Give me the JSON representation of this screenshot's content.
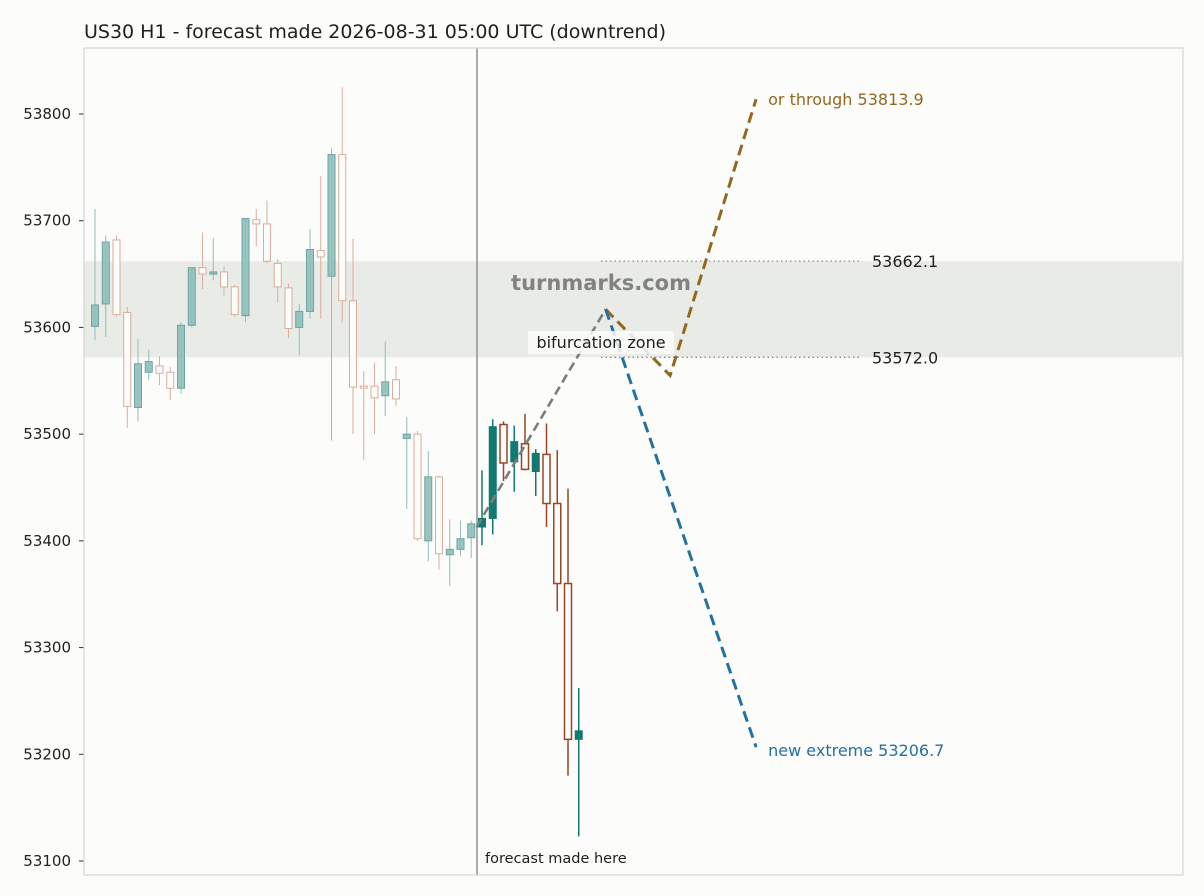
{
  "chart_data": {
    "type": "candlestick",
    "title": "US30 H1 - forecast made 2026-08-31 05:00 UTC (downtrend)",
    "watermark": "turnmarks.com",
    "y_ticks": [
      53100,
      53200,
      53300,
      53400,
      53500,
      53600,
      53700,
      53800
    ],
    "ylim": [
      53085,
      53860
    ],
    "forecast_label": "forecast made here",
    "zone": {
      "low": 53572.0,
      "high": 53662.1,
      "label": "bifurcation zone",
      "low_label": "53572.0",
      "high_label": "53662.1"
    },
    "history_candles": [
      {
        "o": 53601,
        "h": 53711,
        "l": 53588,
        "c": 53621
      },
      {
        "o": 53622,
        "h": 53686,
        "l": 53591,
        "c": 53680
      },
      {
        "o": 53682,
        "h": 53686,
        "l": 53610,
        "c": 53612
      },
      {
        "o": 53614,
        "h": 53619,
        "l": 53506,
        "c": 53526
      },
      {
        "o": 53525,
        "h": 53589,
        "l": 53512,
        "c": 53566
      },
      {
        "o": 53558,
        "h": 53579,
        "l": 53551,
        "c": 53568
      },
      {
        "o": 53564,
        "h": 53573,
        "l": 53546,
        "c": 53557
      },
      {
        "o": 53558,
        "h": 53563,
        "l": 53532,
        "c": 53543
      },
      {
        "o": 53543,
        "h": 53605,
        "l": 53538,
        "c": 53602
      },
      {
        "o": 53602,
        "h": 53656,
        "l": 53600,
        "c": 53656
      },
      {
        "o": 53656,
        "h": 53689,
        "l": 53636,
        "c": 53650
      },
      {
        "o": 53650,
        "h": 53684,
        "l": 53644,
        "c": 53652
      },
      {
        "o": 53652,
        "h": 53657,
        "l": 53630,
        "c": 53638
      },
      {
        "o": 53638,
        "h": 53640,
        "l": 53610,
        "c": 53612
      },
      {
        "o": 53611,
        "h": 53702,
        "l": 53605,
        "c": 53702
      },
      {
        "o": 53701,
        "h": 53711,
        "l": 53676,
        "c": 53697
      },
      {
        "o": 53697,
        "h": 53719,
        "l": 53660,
        "c": 53662
      },
      {
        "o": 53660,
        "h": 53664,
        "l": 53623,
        "c": 53638
      },
      {
        "o": 53637,
        "h": 53641,
        "l": 53590,
        "c": 53599
      },
      {
        "o": 53600,
        "h": 53622,
        "l": 53574,
        "c": 53615
      },
      {
        "o": 53615,
        "h": 53692,
        "l": 53608,
        "c": 53673
      },
      {
        "o": 53672,
        "h": 53742,
        "l": 53608,
        "c": 53666
      },
      {
        "o": 53648,
        "h": 53768,
        "l": 53494,
        "c": 53762
      },
      {
        "o": 53762,
        "h": 53825,
        "l": 53605,
        "c": 53625
      },
      {
        "o": 53625,
        "h": 53683,
        "l": 53500,
        "c": 53544
      },
      {
        "o": 53545,
        "h": 53559,
        "l": 53476,
        "c": 53544
      },
      {
        "o": 53545,
        "h": 53567,
        "l": 53500,
        "c": 53534
      },
      {
        "o": 53536,
        "h": 53587,
        "l": 53517,
        "c": 53549
      },
      {
        "o": 53551,
        "h": 53564,
        "l": 53527,
        "c": 53533
      },
      {
        "o": 53496,
        "h": 53516,
        "l": 53430,
        "c": 53500
      },
      {
        "o": 53500,
        "h": 53503,
        "l": 53400,
        "c": 53402
      },
      {
        "o": 53400,
        "h": 53484,
        "l": 53381,
        "c": 53460
      },
      {
        "o": 53460,
        "h": 53461,
        "l": 53373,
        "c": 53388
      },
      {
        "o": 53387,
        "h": 53420,
        "l": 53358,
        "c": 53392
      },
      {
        "o": 53392,
        "h": 53419,
        "l": 53386,
        "c": 53402
      },
      {
        "o": 53403,
        "h": 53419,
        "l": 53384,
        "c": 53416
      }
    ],
    "actual_candles": [
      {
        "o": 53413,
        "h": 53466,
        "l": 53396,
        "c": 53421
      },
      {
        "o": 53421,
        "h": 53514,
        "l": 53406,
        "c": 53507
      },
      {
        "o": 53509,
        "h": 53512,
        "l": 53456,
        "c": 53473
      },
      {
        "o": 53474,
        "h": 53508,
        "l": 53446,
        "c": 53493
      },
      {
        "o": 53491,
        "h": 53519,
        "l": 53466,
        "c": 53467
      },
      {
        "o": 53465,
        "h": 53486,
        "l": 53442,
        "c": 53482
      },
      {
        "o": 53481,
        "h": 53510,
        "l": 53413,
        "c": 53435
      },
      {
        "o": 53435,
        "h": 53485,
        "l": 53334,
        "c": 53360
      },
      {
        "o": 53360,
        "h": 53449,
        "l": 53180,
        "c": 53214
      },
      {
        "o": 53214,
        "h": 53262,
        "l": 53123,
        "c": 53222
      }
    ],
    "paths": {
      "common": [
        [
          35.5,
          53413
        ],
        [
          47.5,
          53617
        ]
      ],
      "up": [
        [
          47.5,
          53617
        ],
        [
          53.5,
          53555
        ],
        [
          61.5,
          53813.9
        ]
      ],
      "down": [
        [
          47.5,
          53617
        ],
        [
          61.5,
          53206.7
        ]
      ]
    },
    "path_labels": {
      "up": "or through 53813.9",
      "down": "new extreme 53206.7"
    },
    "colors": {
      "bull": "#117a72",
      "bear": "#9a4528",
      "hist_bull": "#8fbfba",
      "hist_bear": "#dcac9c",
      "up_path": "#94671f",
      "down_path": "#2470a0",
      "common_path": "#7a7d7a",
      "zone": "#e8ebe6"
    }
  }
}
